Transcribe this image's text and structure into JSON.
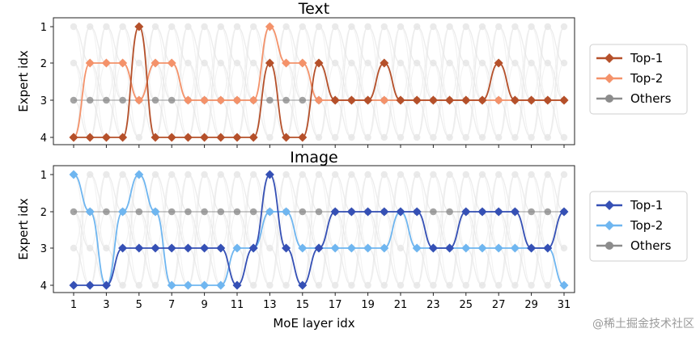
{
  "chart_data": [
    {
      "type": "line",
      "title": "Text",
      "xlabel": "",
      "ylabel": "Expert idx",
      "x": [
        1,
        2,
        3,
        4,
        5,
        6,
        7,
        8,
        9,
        10,
        11,
        12,
        13,
        14,
        15,
        16,
        17,
        18,
        19,
        20,
        21,
        22,
        23,
        24,
        25,
        26,
        27,
        28,
        29,
        30,
        31
      ],
      "yticks": [
        "1",
        "2",
        "3",
        "4"
      ],
      "ylim": [
        4,
        1
      ],
      "legend_position": "right",
      "series": [
        {
          "name": "Top-1",
          "color": "#b5502a",
          "values": [
            4,
            4,
            4,
            4,
            1,
            4,
            4,
            4,
            4,
            4,
            4,
            4,
            2,
            4,
            4,
            2,
            3,
            3,
            3,
            2,
            3,
            3,
            3,
            3,
            3,
            3,
            2,
            3,
            3,
            3,
            3
          ]
        },
        {
          "name": "Top-2",
          "color": "#f4926a",
          "values": [
            4,
            2,
            2,
            2,
            3,
            2,
            2,
            3,
            3,
            3,
            3,
            3,
            1,
            2,
            2,
            3,
            3,
            3,
            3,
            3,
            3,
            3,
            3,
            3,
            3,
            3,
            3,
            3,
            3,
            3,
            3
          ]
        },
        {
          "name": "Others",
          "color": "#8c8c8c",
          "values": [
            3,
            3,
            3,
            3,
            3,
            3,
            3,
            3,
            3,
            3,
            3,
            3,
            3,
            3,
            3,
            3,
            3,
            3,
            3,
            3,
            3,
            3,
            3,
            3,
            3,
            3,
            3,
            3,
            3,
            3,
            3
          ]
        }
      ]
    },
    {
      "type": "line",
      "title": "Image",
      "xlabel": "MoE layer idx",
      "ylabel": "Expert idx",
      "x": [
        1,
        2,
        3,
        4,
        5,
        6,
        7,
        8,
        9,
        10,
        11,
        12,
        13,
        14,
        15,
        16,
        17,
        18,
        19,
        20,
        21,
        22,
        23,
        24,
        25,
        26,
        27,
        28,
        29,
        30,
        31
      ],
      "xticks": [
        "1",
        "3",
        "5",
        "7",
        "9",
        "11",
        "13",
        "15",
        "17",
        "19",
        "21",
        "23",
        "25",
        "27",
        "29",
        "31"
      ],
      "yticks": [
        "1",
        "2",
        "3",
        "4"
      ],
      "ylim": [
        4,
        1
      ],
      "legend_position": "right",
      "series": [
        {
          "name": "Top-1",
          "color": "#3550b5",
          "values": [
            4,
            4,
            4,
            3,
            3,
            3,
            3,
            3,
            3,
            3,
            4,
            3,
            1,
            3,
            4,
            3,
            2,
            2,
            2,
            2,
            2,
            2,
            3,
            3,
            2,
            2,
            2,
            2,
            3,
            3,
            2
          ]
        },
        {
          "name": "Top-2",
          "color": "#6fb6f0",
          "values": [
            1,
            2,
            4,
            2,
            1,
            2,
            4,
            4,
            4,
            4,
            3,
            3,
            2,
            2,
            3,
            3,
            3,
            3,
            3,
            3,
            2,
            3,
            3,
            3,
            3,
            3,
            3,
            3,
            3,
            3,
            4
          ]
        },
        {
          "name": "Others",
          "color": "#8c8c8c",
          "values": [
            2,
            2,
            2,
            2,
            2,
            2,
            2,
            2,
            2,
            2,
            2,
            2,
            2,
            2,
            2,
            2,
            2,
            2,
            2,
            2,
            2,
            2,
            2,
            2,
            2,
            2,
            2,
            2,
            2,
            2,
            2
          ]
        }
      ]
    }
  ],
  "watermark": "@稀土掘金技术社区"
}
